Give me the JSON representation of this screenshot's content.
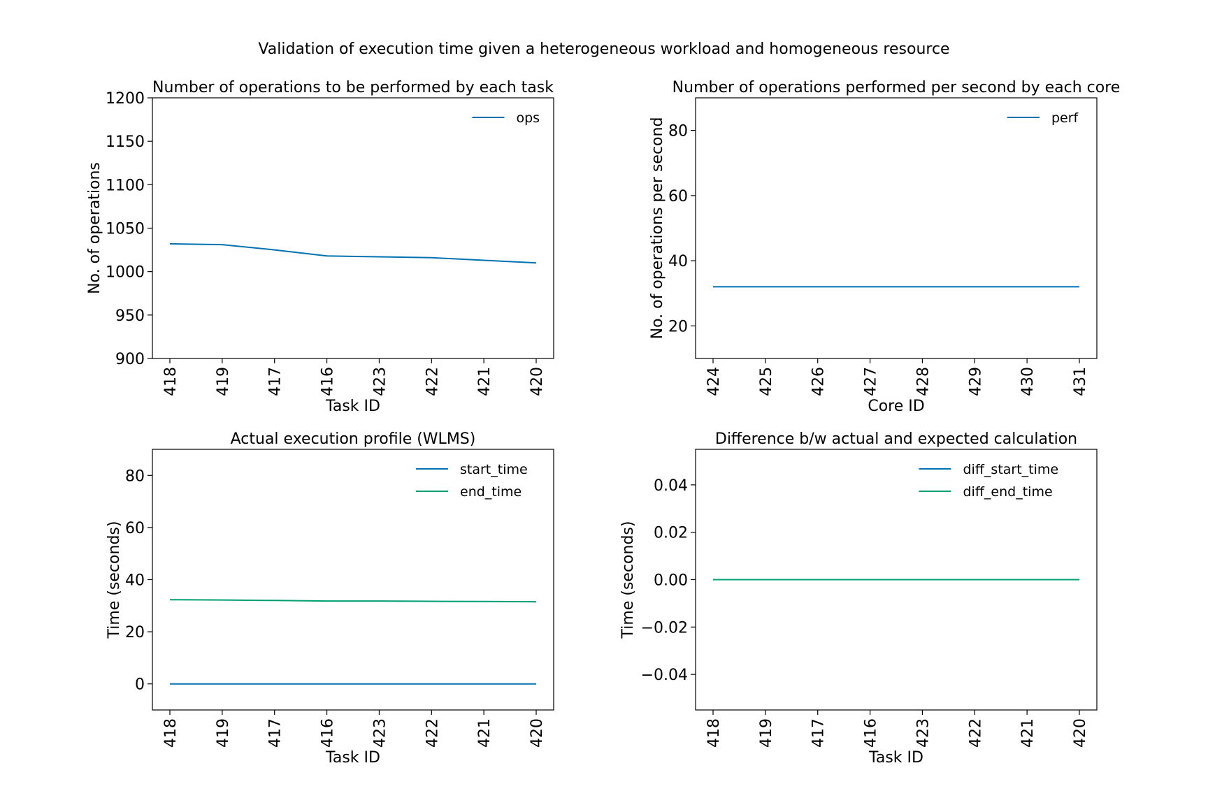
{
  "figure": {
    "suptitle": "Validation of execution time given a heterogeneous workload and homogeneous resource"
  },
  "colors": {
    "blue": "#0072B2",
    "green": "#009E73"
  },
  "chart_data": [
    {
      "type": "line",
      "title": "Number of operations to be performed by each task",
      "xlabel": "Task ID",
      "ylabel": "No. of operations",
      "categories": [
        "418",
        "419",
        "417",
        "416",
        "423",
        "422",
        "421",
        "420"
      ],
      "ylim": [
        900,
        1200
      ],
      "yticks": [
        900,
        950,
        1000,
        1050,
        1100,
        1150,
        1200
      ],
      "legend_position": "upper right",
      "series": [
        {
          "name": "ops",
          "color": "#0072B2",
          "values": [
            1032,
            1031,
            1025,
            1018,
            1017,
            1016,
            1013,
            1010
          ]
        }
      ]
    },
    {
      "type": "line",
      "title": "Number of operations performed per second by each core",
      "xlabel": "Core ID",
      "ylabel": "No. of operations per second",
      "categories": [
        "424",
        "425",
        "426",
        "427",
        "428",
        "429",
        "430",
        "431"
      ],
      "ylim": [
        10,
        90
      ],
      "yticks": [
        20,
        40,
        60,
        80
      ],
      "legend_position": "upper right",
      "series": [
        {
          "name": "perf",
          "color": "#0072B2",
          "values": [
            32,
            32,
            32,
            32,
            32,
            32,
            32,
            32
          ]
        }
      ]
    },
    {
      "type": "line",
      "title": "Actual execution profile (WLMS)",
      "xlabel": "Task ID",
      "ylabel": "Time (seconds)",
      "categories": [
        "418",
        "419",
        "417",
        "416",
        "423",
        "422",
        "421",
        "420"
      ],
      "ylim": [
        -10,
        90
      ],
      "yticks": [
        0,
        20,
        40,
        60,
        80
      ],
      "legend_position": "upper right",
      "series": [
        {
          "name": "start_time",
          "color": "#0072B2",
          "values": [
            0,
            0,
            0,
            0,
            0,
            0,
            0,
            0
          ]
        },
        {
          "name": "end_time",
          "color": "#009E73",
          "values": [
            32.3,
            32.2,
            32.0,
            31.8,
            31.8,
            31.7,
            31.6,
            31.5
          ]
        }
      ]
    },
    {
      "type": "line",
      "title": "Difference b/w actual and expected calculation",
      "xlabel": "Task ID",
      "ylabel": "Time (seconds)",
      "categories": [
        "418",
        "419",
        "417",
        "416",
        "423",
        "422",
        "421",
        "420"
      ],
      "ylim": [
        -0.055,
        0.055
      ],
      "yticks": [
        -0.04,
        -0.02,
        0.0,
        0.02,
        0.04
      ],
      "ytick_labels": [
        "−0.04",
        "−0.02",
        "0.00",
        "0.02",
        "0.04"
      ],
      "legend_position": "upper right",
      "series": [
        {
          "name": "diff_start_time",
          "color": "#0072B2",
          "values": [
            0,
            0,
            0,
            0,
            0,
            0,
            0,
            0
          ]
        },
        {
          "name": "diff_end_time",
          "color": "#009E73",
          "values": [
            0,
            0,
            0,
            0,
            0,
            0,
            0,
            0
          ]
        }
      ]
    }
  ]
}
